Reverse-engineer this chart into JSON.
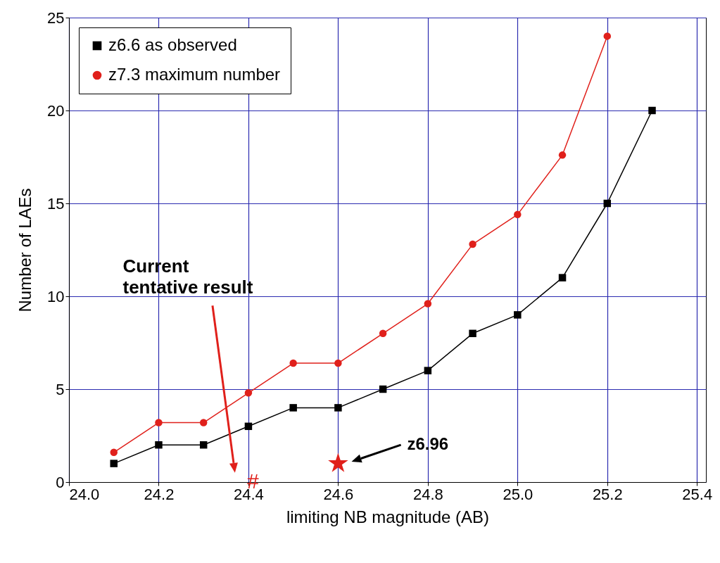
{
  "chart_data": {
    "type": "line",
    "xlabel": "limiting NB magnitude (AB)",
    "ylabel": "Number of LAEs",
    "x": [
      24.1,
      24.2,
      24.3,
      24.4,
      24.5,
      24.6,
      24.7,
      24.8,
      24.9,
      25.0,
      25.1,
      25.2,
      25.3
    ],
    "series": [
      {
        "name": "z6.6 as observed",
        "color": "#000000",
        "marker": "square",
        "values": [
          1,
          2,
          2,
          3,
          4,
          4,
          5,
          6,
          8,
          9,
          11,
          15,
          20
        ]
      },
      {
        "name": "z7.3 maximum number",
        "color": "#e0201b",
        "marker": "circle",
        "values": [
          1.6,
          3.2,
          3.2,
          4.8,
          6.4,
          6.4,
          8,
          9.6,
          12.8,
          14.4,
          17.6,
          24,
          null
        ]
      },
      {
        "type": "scatter",
        "color": "#e0201b",
        "marker": "star",
        "x": [
          24.6
        ],
        "values": [
          1
        ]
      }
    ],
    "annotations": [
      "Current tentative result",
      "#",
      "z6.96"
    ],
    "xlim": [
      24.0,
      25.42
    ],
    "xticks": [
      {
        "value": 24.0,
        "label": "24.0"
      },
      24.2,
      24.4,
      24.6,
      24.8,
      {
        "value": 25.0,
        "label": "25.0"
      },
      25.2,
      25.4
    ],
    "ylim": [
      0,
      25
    ],
    "yticks": [
      0,
      5,
      10,
      15,
      20,
      25
    ],
    "grid": true,
    "legend": "top left"
  }
}
